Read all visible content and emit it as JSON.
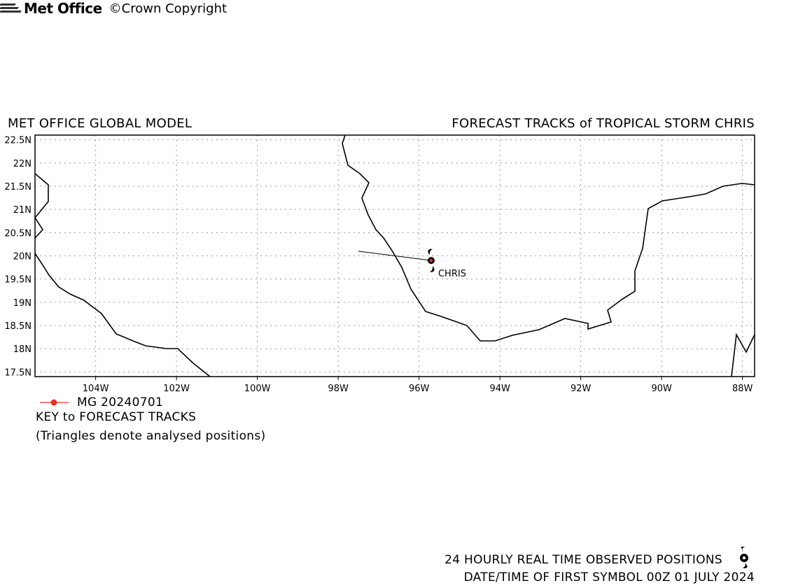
{
  "header": {
    "left_title": "MET OFFICE GLOBAL MODEL",
    "right_title": "FORECAST TRACKS of TROPICAL STORM CHRIS"
  },
  "map": {
    "lon_min": -105.5,
    "lon_max": -87.7,
    "lat_min": 17.4,
    "lat_max": 22.6,
    "lat_labels": [
      "22.5N",
      "22N",
      "21.5N",
      "21N",
      "20.5N",
      "20N",
      "19.5N",
      "19N",
      "18.5N",
      "18N",
      "17.5N"
    ],
    "lon_labels": [
      "104W",
      "102W",
      "100W",
      "98W",
      "96W",
      "94W",
      "92W",
      "90W",
      "88W"
    ],
    "storm_label": "CHRIS",
    "storm_position": {
      "lon": -95.7,
      "lat": 19.9
    },
    "forecast_track": [
      [
        -95.7,
        19.9
      ],
      [
        -97.5,
        20.1
      ]
    ],
    "track_color": "#e8322f",
    "coastline_color": "#000000",
    "grid": "dotted"
  },
  "key": {
    "entry_label": "MG 20240701",
    "title": "KEY to FORECAST TRACKS",
    "note": "(Triangles denote analysed positions)"
  },
  "footer": {
    "brand": "Met Office",
    "copyright": "©Crown Copyright",
    "observed_label": "24 HOURLY REAL TIME OBSERVED POSITIONS",
    "date_label": "DATE/TIME OF FIRST SYMBOL 00Z 01 JULY 2024"
  }
}
